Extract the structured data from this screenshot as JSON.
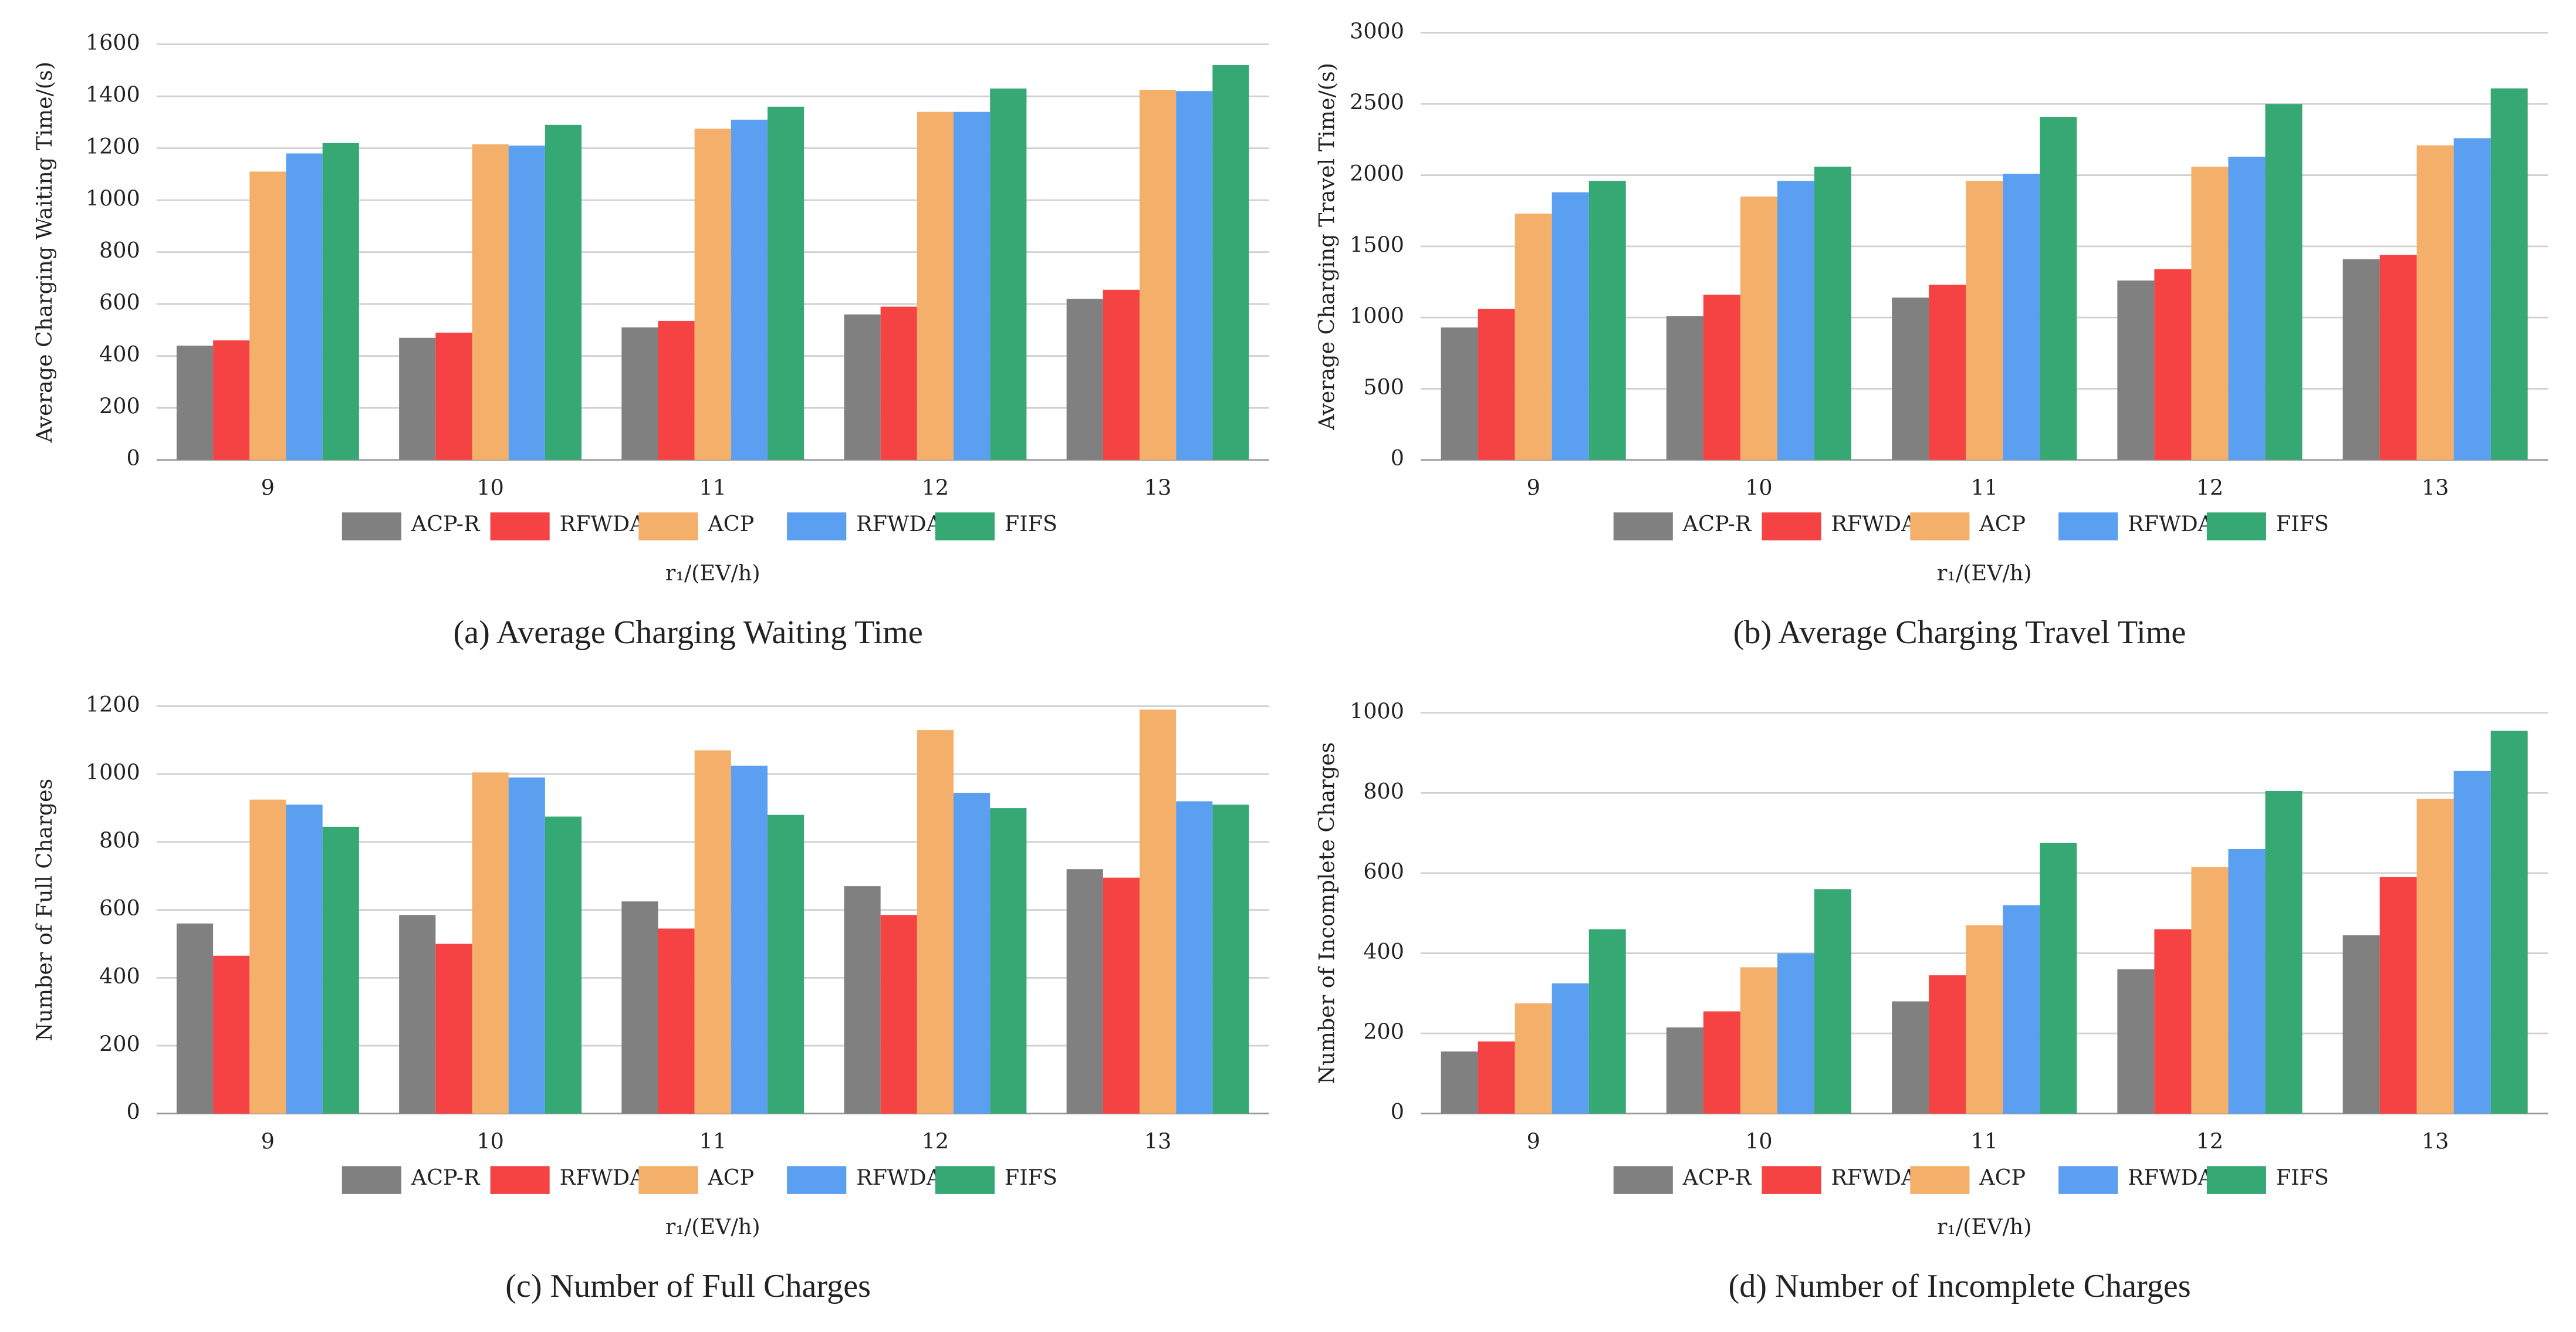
{
  "chart_data": [
    {
      "type": "bar",
      "title": "(a) Average Charging Waiting Time",
      "ylabel": "Average Charging Waiting Time/(s)",
      "xlabel": "r₁/(EV/h)",
      "categories": [
        "9",
        "10",
        "11",
        "12",
        "13"
      ],
      "ylim": [
        0,
        1600
      ],
      "yticks": [
        0,
        200,
        400,
        600,
        800,
        1000,
        1200,
        1400,
        1600
      ],
      "grid": true,
      "series": [
        {
          "name": "ACP-R",
          "color": "#808080",
          "values": [
            440,
            470,
            510,
            560,
            620
          ]
        },
        {
          "name": "RFWDA-R",
          "color": "#f54242",
          "values": [
            460,
            490,
            535,
            590,
            655
          ]
        },
        {
          "name": "ACP",
          "color": "#f4b06a",
          "values": [
            1110,
            1215,
            1275,
            1340,
            1425
          ]
        },
        {
          "name": "RFWDA",
          "color": "#5b9ff0",
          "values": [
            1180,
            1210,
            1310,
            1340,
            1420
          ]
        },
        {
          "name": "FIFS",
          "color": "#35a873",
          "values": [
            1220,
            1290,
            1360,
            1430,
            1520
          ]
        }
      ]
    },
    {
      "type": "bar",
      "title": "(b) Average Charging Travel Time",
      "ylabel": "Average Charging Travel Time/(s)",
      "xlabel": "r₁/(EV/h)",
      "categories": [
        "9",
        "10",
        "11",
        "12",
        "13"
      ],
      "ylim": [
        0,
        3000
      ],
      "yticks": [
        0,
        500,
        1000,
        1500,
        2000,
        2500,
        3000
      ],
      "grid": true,
      "series": [
        {
          "name": "ACP-R",
          "color": "#808080",
          "values": [
            930,
            1010,
            1140,
            1260,
            1410
          ]
        },
        {
          "name": "RFWDA-R",
          "color": "#f54242",
          "values": [
            1060,
            1160,
            1230,
            1340,
            1440
          ]
        },
        {
          "name": "ACP",
          "color": "#f4b06a",
          "values": [
            1730,
            1850,
            1960,
            2060,
            2210
          ]
        },
        {
          "name": "RFWDA",
          "color": "#5b9ff0",
          "values": [
            1880,
            1960,
            2010,
            2130,
            2260
          ]
        },
        {
          "name": "FIFS",
          "color": "#35a873",
          "values": [
            1960,
            2060,
            2410,
            2500,
            2610
          ]
        }
      ]
    },
    {
      "type": "bar",
      "title": "(c) Number of Full Charges",
      "ylabel": "Number of Full Charges",
      "xlabel": "r₁/(EV/h)",
      "categories": [
        "9",
        "10",
        "11",
        "12",
        "13"
      ],
      "ylim": [
        0,
        1200
      ],
      "yticks": [
        0,
        200,
        400,
        600,
        800,
        1000,
        1200
      ],
      "grid": true,
      "series": [
        {
          "name": "ACP-R",
          "color": "#808080",
          "values": [
            560,
            585,
            625,
            670,
            720
          ]
        },
        {
          "name": "RFWDA-R",
          "color": "#f54242",
          "values": [
            465,
            500,
            545,
            585,
            695
          ]
        },
        {
          "name": "ACP",
          "color": "#f4b06a",
          "values": [
            925,
            1005,
            1070,
            1130,
            1190
          ]
        },
        {
          "name": "RFWDA",
          "color": "#5b9ff0",
          "values": [
            910,
            990,
            1025,
            945,
            920
          ]
        },
        {
          "name": "FIFS",
          "color": "#35a873",
          "values": [
            845,
            875,
            880,
            900,
            910
          ]
        }
      ]
    },
    {
      "type": "bar",
      "title": "(d) Number of Incomplete Charges",
      "ylabel": "Number of Incomplete Charges",
      "xlabel": "r₁/(EV/h)",
      "categories": [
        "9",
        "10",
        "11",
        "12",
        "13"
      ],
      "ylim": [
        0,
        1000
      ],
      "yticks": [
        0,
        200,
        400,
        600,
        800,
        1000
      ],
      "grid": true,
      "series": [
        {
          "name": "ACP-R",
          "color": "#808080",
          "values": [
            155,
            215,
            280,
            360,
            445
          ]
        },
        {
          "name": "RFWDA-R",
          "color": "#f54242",
          "values": [
            180,
            255,
            345,
            460,
            590
          ]
        },
        {
          "name": "ACP",
          "color": "#f4b06a",
          "values": [
            275,
            365,
            470,
            615,
            785
          ]
        },
        {
          "name": "RFWDA",
          "color": "#5b9ff0",
          "values": [
            325,
            400,
            520,
            660,
            855
          ]
        },
        {
          "name": "FIFS",
          "color": "#35a873",
          "values": [
            460,
            560,
            675,
            805,
            955
          ]
        }
      ]
    }
  ]
}
